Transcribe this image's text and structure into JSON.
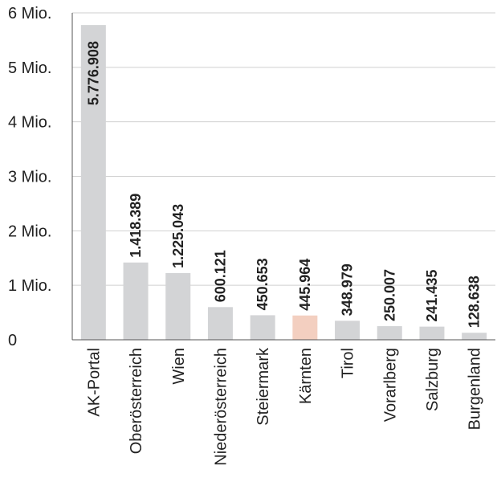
{
  "chart_data": {
    "type": "bar",
    "categories": [
      "AK-Portal",
      "Oberösterreich",
      "Wien",
      "Niederösterreich",
      "Steiermark",
      "Kärnten",
      "Tirol",
      "Vorarlberg",
      "Salzburg",
      "Burgenland"
    ],
    "values": [
      5776908,
      1418389,
      1225043,
      600121,
      450653,
      445964,
      348979,
      250007,
      241435,
      128638
    ],
    "value_labels": [
      "5.776.908",
      "1.418.389",
      "1.225.043",
      "600.121",
      "450.653",
      "445.964",
      "348.979",
      "250.007",
      "241.435",
      "128.638"
    ],
    "ylim": [
      0,
      6000000
    ],
    "yticks": [
      0,
      1000000,
      2000000,
      3000000,
      4000000,
      5000000,
      6000000
    ],
    "ytick_labels": [
      "0",
      "1 Mio.",
      "2 Mio.",
      "3 Mio.",
      "4 Mio.",
      "5 Mio.",
      "6 Mio."
    ],
    "grid": true,
    "colors": {
      "bar": "#d3d4d6",
      "highlight": "#f3cfc0",
      "grid": "#cfcfcf"
    },
    "highlight_index": 5
  }
}
